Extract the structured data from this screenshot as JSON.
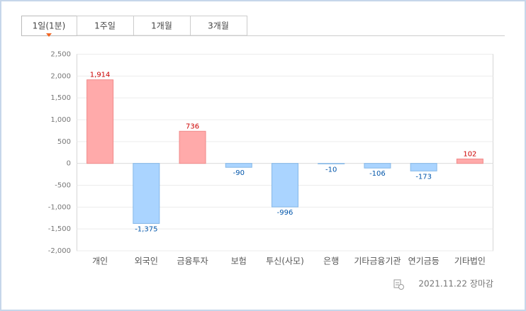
{
  "tabs": [
    "1일(1분)",
    "1주일",
    "1개월",
    "3개월"
  ],
  "footer": "2021.11.22 장마감",
  "chart_data": {
    "type": "bar",
    "categories": [
      "개인",
      "외국인",
      "금융투자",
      "보험",
      "투신(사모)",
      "은행",
      "기타금융기관",
      "연기금등",
      "기타법인"
    ],
    "values": [
      1914,
      -1375,
      736,
      -90,
      -996,
      -10,
      -106,
      -173,
      102
    ],
    "value_labels": [
      "1,914",
      "-1,375",
      "736",
      "-90",
      "-996",
      "-10",
      "-106",
      "-173",
      "102"
    ],
    "colors": {
      "positive": "#ffaaaa",
      "negative": "#aad4ff"
    },
    "label_colors": {
      "positive": "#cc0000",
      "negative": "#0055aa"
    },
    "ylim": [
      -2000,
      2500
    ],
    "yticks": [
      {
        "value": -2000,
        "label": "-2,000"
      },
      {
        "value": -1500,
        "label": "-1,500"
      },
      {
        "value": -1000,
        "label": "-1,000"
      },
      -500,
      0,
      500,
      {
        "value": 1000,
        "label": "1,000"
      },
      {
        "value": 1500,
        "label": "1,500"
      },
      {
        "value": 2000,
        "label": "2,000"
      },
      {
        "value": 2500,
        "label": "2,500"
      }
    ],
    "grid": true
  }
}
